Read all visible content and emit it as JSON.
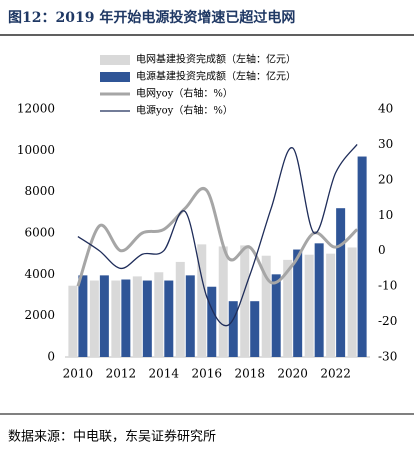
{
  "chart_data": {
    "type": "combo",
    "title": "图12：2019 年开始电源投资增速已超过电网",
    "source": "数据来源：中电联，东吴证券研究所",
    "x": [
      2010,
      2011,
      2012,
      2013,
      2014,
      2015,
      2016,
      2017,
      2018,
      2019,
      2020,
      2021,
      2022,
      2023
    ],
    "xlim": [
      2009.4,
      2023.6
    ],
    "xticks": [
      2010,
      2012,
      2014,
      2016,
      2018,
      2020,
      2022
    ],
    "ylim": [
      0,
      12000
    ],
    "yticks": [
      0,
      2000,
      4000,
      6000,
      8000,
      10000,
      12000
    ],
    "y2lim": [
      -30,
      40
    ],
    "y2ticks": [
      -30,
      -20,
      -10,
      0,
      10,
      20,
      30,
      40
    ],
    "series": [
      {
        "name": "电网基建投资完成额（左轴：亿元）",
        "type": "bar",
        "color": "#d9d9d9",
        "values": [
          3450,
          3700,
          3700,
          3900,
          4100,
          4600,
          5450,
          5350,
          5400,
          4900,
          4700,
          4950,
          5000,
          5300
        ]
      },
      {
        "name": "电源基建投资完成额（左轴：亿元）",
        "type": "bar",
        "color": "#2f5597",
        "values": [
          3950,
          3950,
          3750,
          3700,
          3700,
          3950,
          3400,
          2700,
          2700,
          4000,
          5200,
          5500,
          7200,
          9700
        ]
      },
      {
        "name": "电网yoy（右轴：%）",
        "type": "line",
        "axis": "y2",
        "color": "#a6a6a6",
        "values": [
          -10,
          7,
          0,
          5,
          6,
          12,
          17,
          -2,
          1,
          -9,
          -4,
          5,
          1,
          6
        ]
      },
      {
        "name": "电源yoy（右轴：%）",
        "type": "line",
        "axis": "y2",
        "color": "#1f2d5a",
        "values": [
          4,
          0,
          -5,
          -1,
          0,
          11,
          -13,
          -21,
          -7,
          12,
          29,
          5,
          22,
          30
        ]
      }
    ]
  }
}
